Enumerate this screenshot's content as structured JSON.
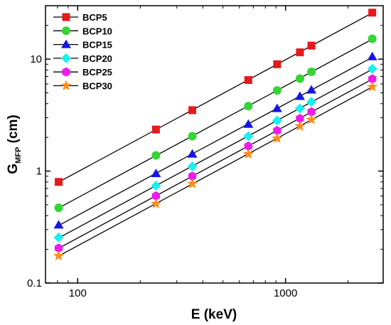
{
  "chart_data": {
    "type": "scatter",
    "title": "",
    "xlabel": "E (keV)",
    "ylabel_main": "G",
    "ylabel_sub": "MFP",
    "ylabel_unit": " (cm)",
    "xscale": "log",
    "yscale": "log",
    "xlim": [
      70,
      2950
    ],
    "ylim": [
      0.1,
      30
    ],
    "x_ticks": [
      100,
      1000
    ],
    "x_tick_labels": [
      "100",
      "1000"
    ],
    "y_ticks": [
      0.1,
      1,
      10
    ],
    "y_tick_labels": [
      "0.1",
      "1",
      "10"
    ],
    "grid": false,
    "legend_position": "top-left",
    "x": [
      81,
      238,
      356,
      662,
      911,
      1173,
      1332,
      2614
    ],
    "series": [
      {
        "name": "BCP5",
        "color": "#e41a1c",
        "marker": "square",
        "values": [
          0.8,
          2.35,
          3.5,
          6.5,
          9.0,
          11.5,
          13.2,
          26.0
        ]
      },
      {
        "name": "BCP10",
        "color": "#33d633",
        "marker": "circle",
        "values": [
          0.47,
          1.38,
          2.05,
          3.8,
          5.25,
          6.7,
          7.7,
          15.2
        ]
      },
      {
        "name": "BCP15",
        "color": "#1515e6",
        "marker": "triangle",
        "values": [
          0.33,
          0.95,
          1.42,
          2.62,
          3.62,
          4.65,
          5.3,
          10.5
        ]
      },
      {
        "name": "BCP20",
        "color": "#19f0f0",
        "marker": "diamond",
        "values": [
          0.255,
          0.74,
          1.1,
          2.05,
          2.82,
          3.62,
          4.15,
          8.2
        ]
      },
      {
        "name": "BCP25",
        "color": "#ee1aee",
        "marker": "hexagon",
        "values": [
          0.205,
          0.6,
          0.9,
          1.67,
          2.3,
          2.95,
          3.38,
          6.65
        ]
      },
      {
        "name": "BCP30",
        "color": "#ff8c1a",
        "marker": "star",
        "values": [
          0.175,
          0.51,
          0.77,
          1.42,
          1.96,
          2.52,
          2.88,
          5.65
        ]
      }
    ]
  }
}
